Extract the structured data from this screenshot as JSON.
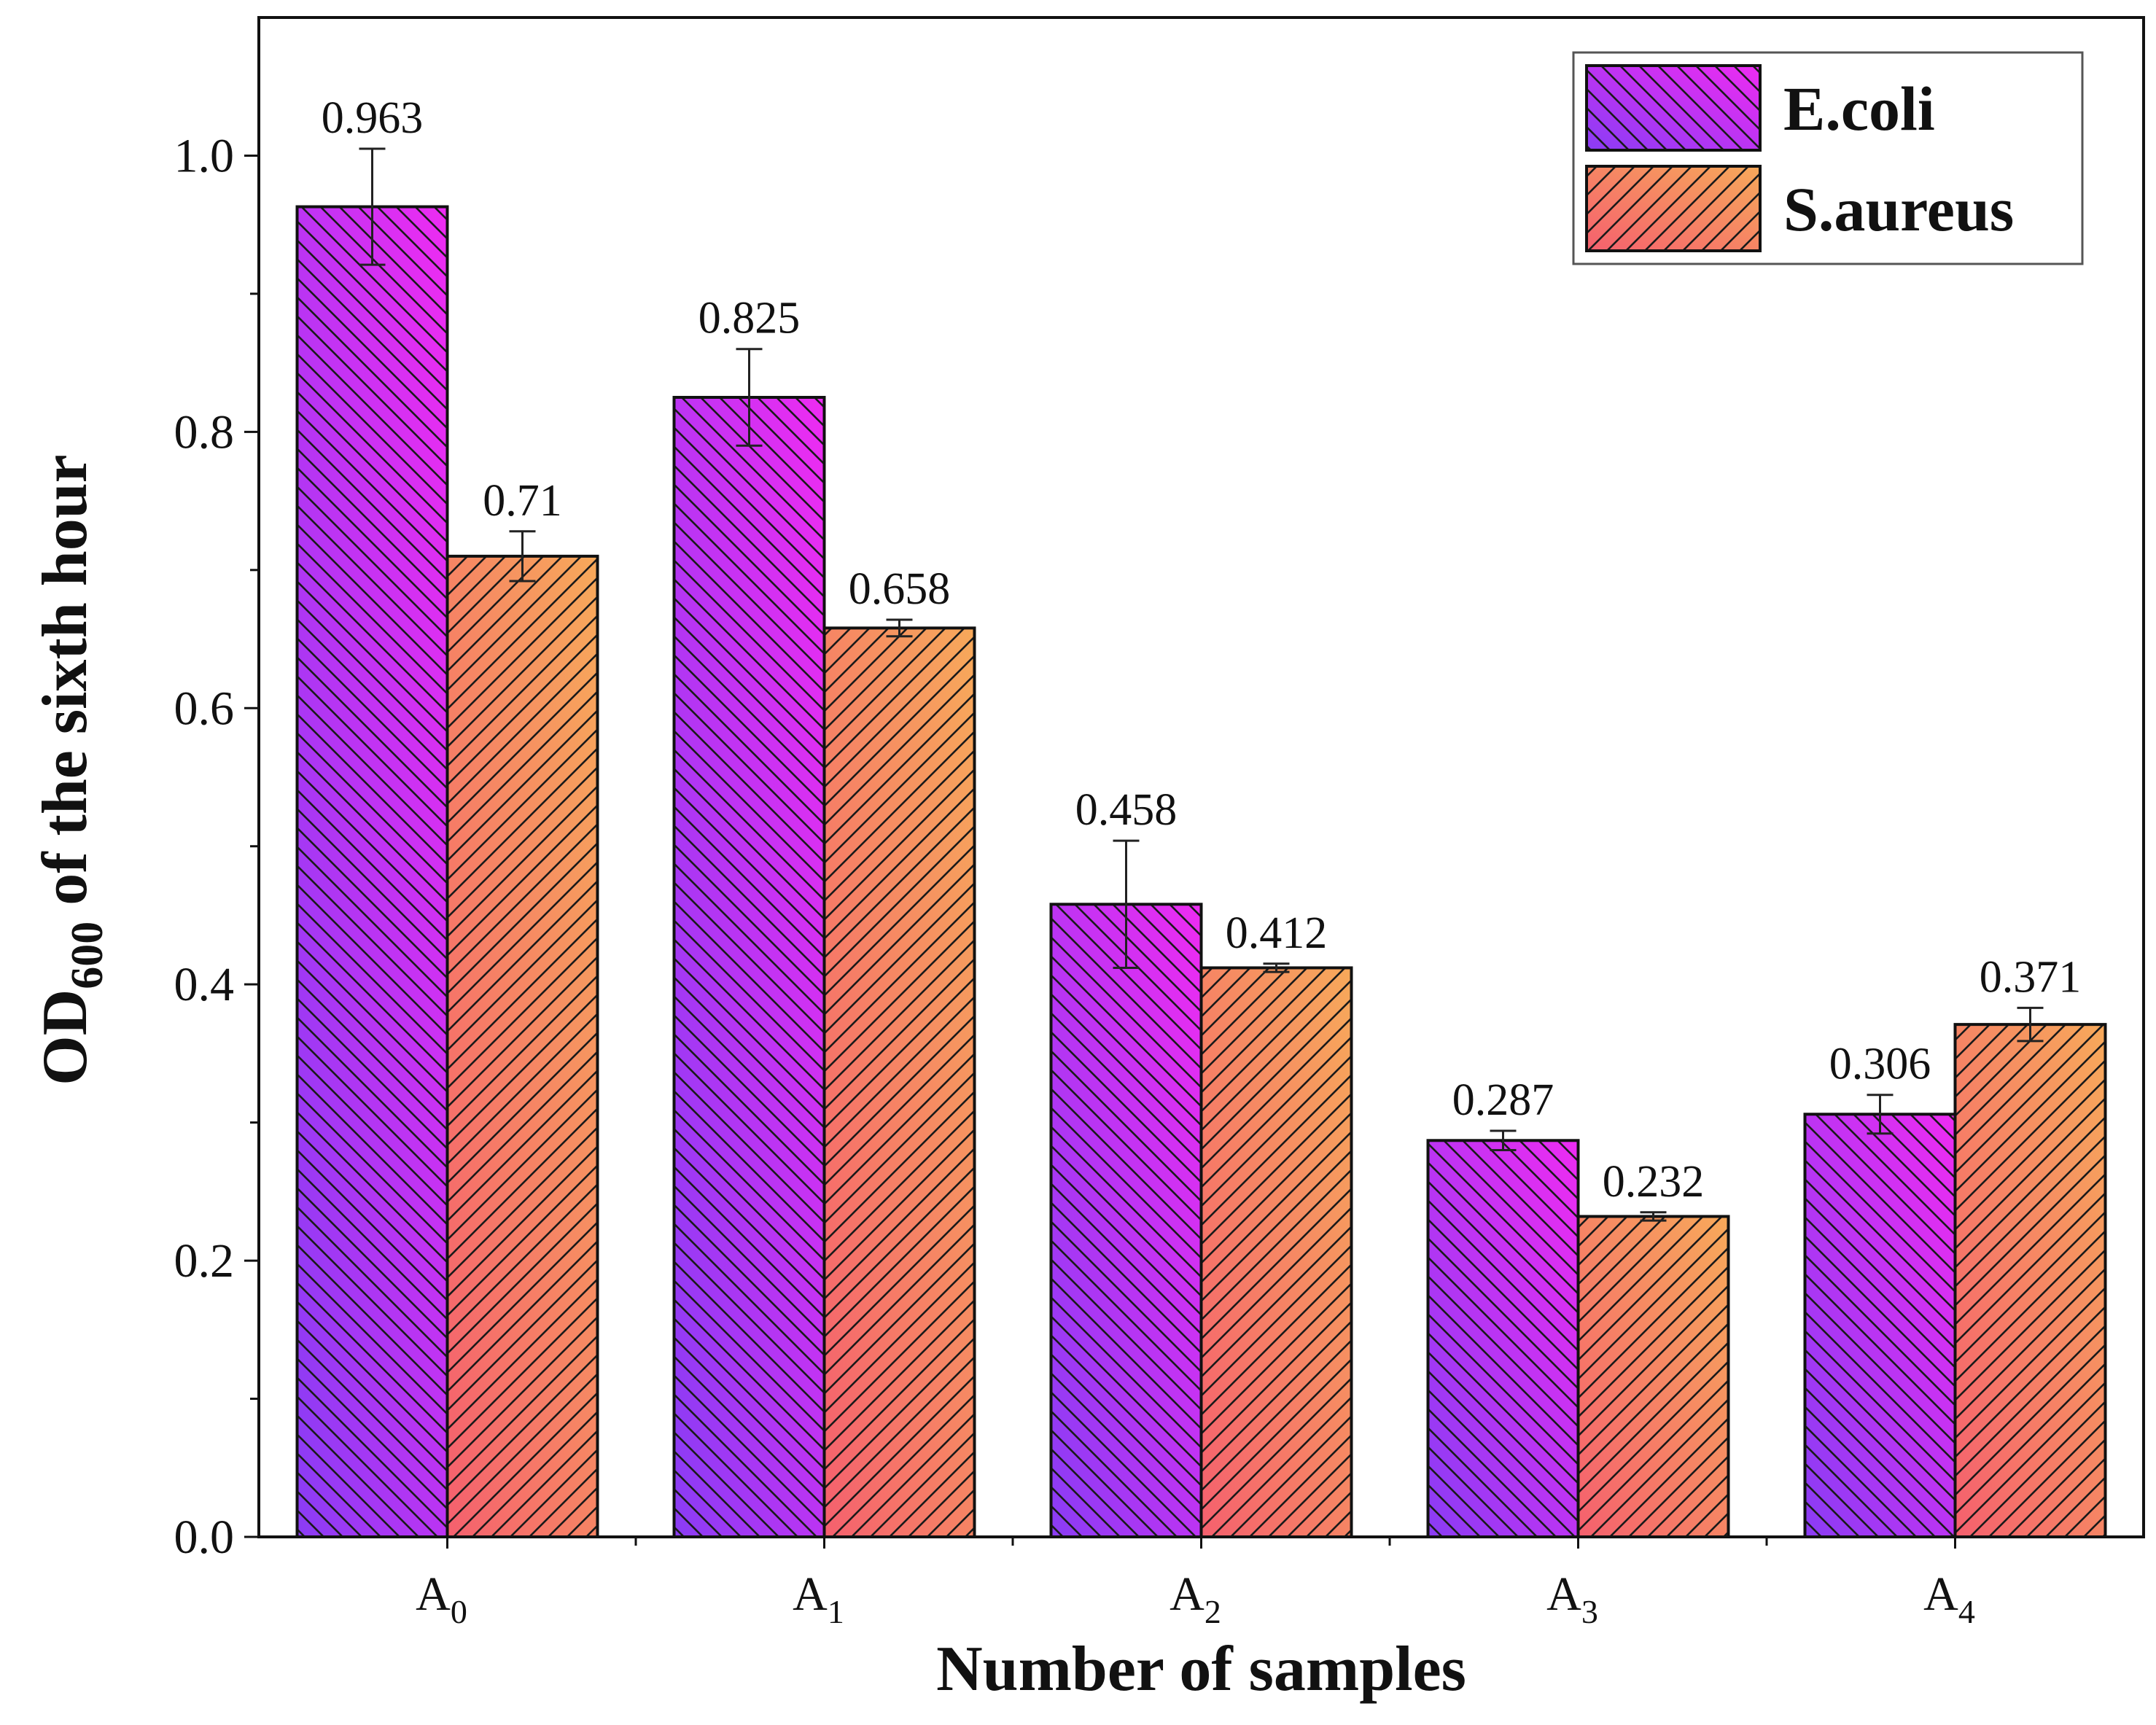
{
  "chart_data": {
    "type": "bar",
    "title": "",
    "xlabel": "Number of samples",
    "ylabel": {
      "main": "OD",
      "sub": "600",
      "rest": " of the sixth hour"
    },
    "ylim": [
      0,
      1.1
    ],
    "yticks": [
      "0.0",
      "0.2",
      "0.4",
      "0.6",
      "0.8",
      "1.0"
    ],
    "categories": [
      {
        "base": "A",
        "sub": "0"
      },
      {
        "base": "A",
        "sub": "1"
      },
      {
        "base": "A",
        "sub": "2"
      },
      {
        "base": "A",
        "sub": "3"
      },
      {
        "base": "A",
        "sub": "4"
      }
    ],
    "series": [
      {
        "name": "E.coli",
        "values": [
          0.963,
          0.825,
          0.458,
          0.287,
          0.306
        ],
        "labels": [
          "0.963",
          "0.825",
          "0.458",
          "0.287",
          "0.306"
        ],
        "errors": [
          0.042,
          0.035,
          0.046,
          0.007,
          0.014
        ],
        "gradient": [
          "#ee2cf2",
          "#8a3cf4"
        ],
        "hatch": "backslash"
      },
      {
        "name": "S.aureus",
        "values": [
          0.71,
          0.658,
          0.412,
          0.232,
          0.371
        ],
        "labels": [
          "0.71",
          "0.658",
          "0.412",
          "0.232",
          "0.371"
        ],
        "errors": [
          0.018,
          0.006,
          0.003,
          0.003,
          0.012
        ],
        "gradient": [
          "#f7a95a",
          "#f5606e"
        ],
        "hatch": "slash"
      }
    ],
    "legend_position": "top-right",
    "grid": false
  }
}
